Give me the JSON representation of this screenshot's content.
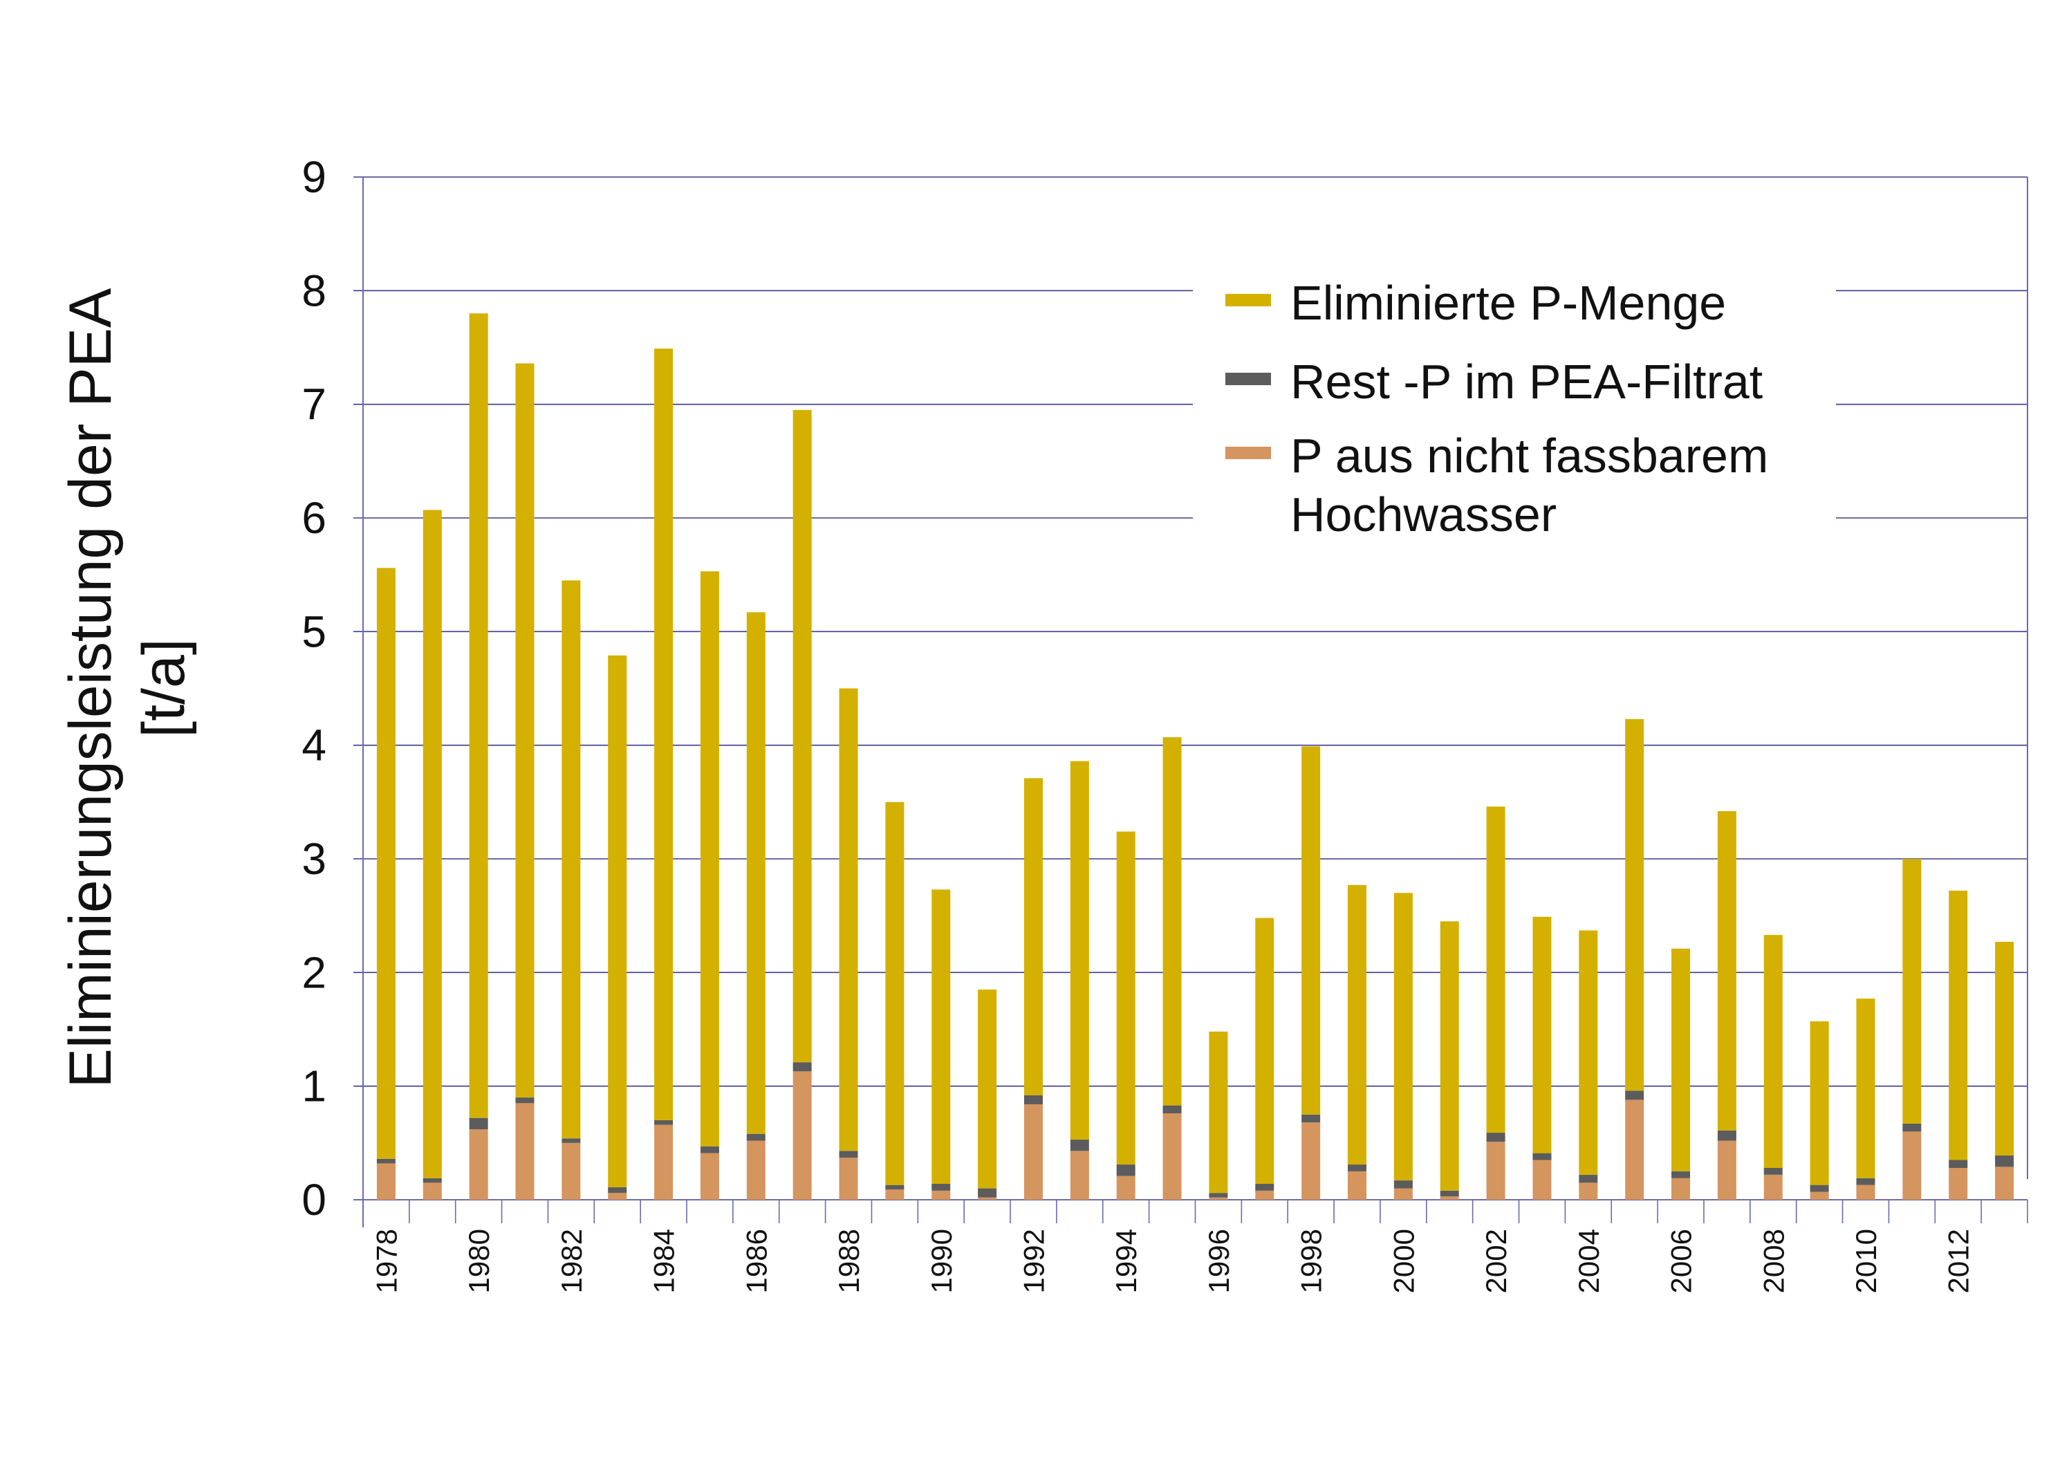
{
  "chart_data": {
    "type": "bar",
    "stacked": true,
    "ylabel_lines": [
      "Eliminierungsleistung der PEA",
      "[t/a]"
    ],
    "ylim": [
      0,
      9
    ],
    "yticks": [
      0,
      1,
      2,
      3,
      4,
      5,
      6,
      7,
      8,
      9
    ],
    "grid": true,
    "legend_position": "top-right",
    "categories": [
      1978,
      1979,
      1980,
      1981,
      1982,
      1983,
      1984,
      1985,
      1986,
      1987,
      1988,
      1989,
      1990,
      1991,
      1992,
      1993,
      1994,
      1995,
      1996,
      1997,
      1998,
      1999,
      2000,
      2001,
      2002,
      2003,
      2004,
      2005,
      2006,
      2007,
      2008,
      2009,
      2010,
      2011,
      2012,
      2013
    ],
    "xtick_labels": [
      "1978",
      "1980",
      "1982",
      "1984",
      "1986",
      "1988",
      "1990",
      "1992",
      "1994",
      "1996",
      "1998",
      "2000",
      "2002",
      "2004",
      "2006",
      "2008",
      "2010",
      "2012"
    ],
    "series": [
      {
        "key": "p_hochwasser",
        "color": "#d4955f",
        "values": [
          0.32,
          0.15,
          0.62,
          0.85,
          0.5,
          0.06,
          0.66,
          0.41,
          0.52,
          1.13,
          0.37,
          0.09,
          0.08,
          0.02,
          0.84,
          0.43,
          0.21,
          0.76,
          0.02,
          0.08,
          0.68,
          0.25,
          0.1,
          0.03,
          0.51,
          0.35,
          0.15,
          0.88,
          0.19,
          0.52,
          0.22,
          0.07,
          0.13,
          0.6,
          0.28,
          0.29
        ]
      },
      {
        "key": "rest_p",
        "color": "#5c5c5c",
        "values": [
          0.04,
          0.04,
          0.1,
          0.05,
          0.04,
          0.05,
          0.04,
          0.06,
          0.06,
          0.08,
          0.06,
          0.04,
          0.06,
          0.08,
          0.08,
          0.1,
          0.1,
          0.07,
          0.04,
          0.06,
          0.07,
          0.06,
          0.07,
          0.05,
          0.08,
          0.06,
          0.07,
          0.08,
          0.06,
          0.09,
          0.06,
          0.06,
          0.06,
          0.07,
          0.07,
          0.1
        ]
      },
      {
        "key": "eliminiert",
        "color": "#d4b000",
        "values": [
          5.2,
          5.88,
          7.08,
          6.46,
          4.91,
          4.68,
          6.79,
          5.06,
          4.59,
          5.74,
          4.07,
          3.37,
          2.59,
          1.75,
          2.79,
          3.33,
          2.93,
          3.24,
          1.42,
          2.34,
          3.24,
          2.46,
          2.53,
          2.37,
          2.87,
          2.08,
          2.15,
          3.27,
          1.96,
          2.81,
          2.05,
          1.44,
          1.58,
          2.33,
          2.37,
          1.88
        ]
      }
    ],
    "legend": [
      {
        "label": "Eliminierte P-Menge",
        "color": "#d4b000"
      },
      {
        "label": "Rest -P im PEA-Filtrat",
        "color": "#5c5c5c"
      },
      {
        "label_lines": [
          "P aus nicht fassbarem",
          "Hochwasser"
        ],
        "color": "#d4955f"
      }
    ],
    "colors": {
      "grid": "#3a3a8c",
      "axis": "#6a6ab0"
    }
  }
}
